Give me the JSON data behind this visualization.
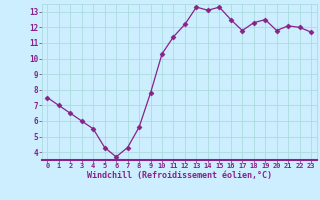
{
  "hours": [
    0,
    1,
    2,
    3,
    4,
    5,
    6,
    7,
    8,
    9,
    10,
    11,
    12,
    13,
    14,
    15,
    16,
    17,
    18,
    19,
    20,
    21,
    22,
    23
  ],
  "values": [
    7.5,
    7.0,
    6.5,
    6.0,
    5.5,
    4.3,
    3.7,
    4.3,
    5.6,
    7.8,
    10.3,
    11.4,
    12.2,
    13.3,
    13.1,
    13.3,
    12.5,
    11.8,
    12.3,
    12.5,
    11.8,
    12.1,
    12.0,
    11.7
  ],
  "line_color": "#882288",
  "marker": "D",
  "marker_size": 2.5,
  "background_color": "#cceeff",
  "grid_color": "#aadddd",
  "xlabel": "Windchill (Refroidissement éolien,°C)",
  "xlabel_color": "#882288",
  "tick_color": "#882288",
  "spine_color": "#882288",
  "ylim": [
    3.5,
    13.5
  ],
  "yticks": [
    4,
    5,
    6,
    7,
    8,
    9,
    10,
    11,
    12,
    13
  ],
  "xlim": [
    -0.5,
    23.5
  ],
  "xticks": [
    0,
    1,
    2,
    3,
    4,
    5,
    6,
    7,
    8,
    9,
    10,
    11,
    12,
    13,
    14,
    15,
    16,
    17,
    18,
    19,
    20,
    21,
    22,
    23
  ]
}
